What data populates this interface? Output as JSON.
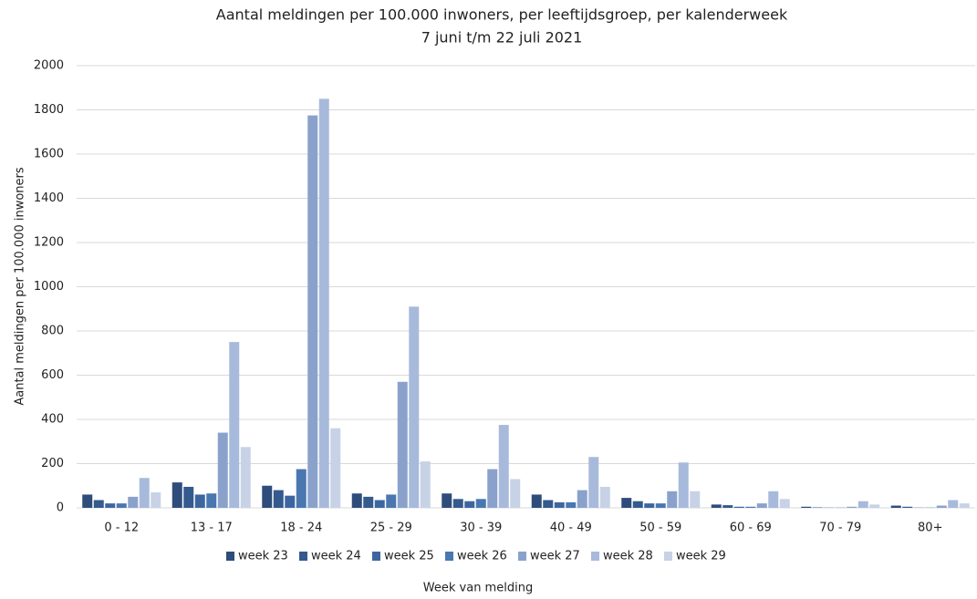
{
  "chart_data": {
    "type": "bar",
    "title": "Aantal meldingen per 100.000 inwoners, per leeftijdsgroep, per kalenderweek",
    "subtitle": "7 juni t/m 22 juli 2021",
    "y_label": "Aantal meldingen per 100.000 inwoners",
    "x_label": "Week van melding",
    "categories": [
      "0 - 12",
      "13 - 17",
      "18 - 24",
      "25 - 29",
      "30 - 39",
      "40 - 49",
      "50 - 59",
      "60 - 69",
      "70 - 79",
      "80+"
    ],
    "series": [
      {
        "name": "week 23",
        "color": "#2e4d7b",
        "values": [
          60,
          115,
          100,
          65,
          65,
          60,
          45,
          15,
          5,
          10
        ]
      },
      {
        "name": "week 24",
        "color": "#345a8e",
        "values": [
          35,
          95,
          80,
          50,
          40,
          35,
          30,
          12,
          2,
          5
        ]
      },
      {
        "name": "week 25",
        "color": "#3d66a0",
        "values": [
          20,
          60,
          55,
          35,
          30,
          25,
          20,
          5,
          1,
          1
        ]
      },
      {
        "name": "week 26",
        "color": "#4a77b0",
        "values": [
          20,
          65,
          175,
          60,
          40,
          25,
          20,
          5,
          1,
          1
        ]
      },
      {
        "name": "week 27",
        "color": "#8aa2cb",
        "values": [
          50,
          340,
          1775,
          570,
          175,
          80,
          75,
          20,
          5,
          10
        ]
      },
      {
        "name": "week 28",
        "color": "#a8badb",
        "values": [
          135,
          750,
          1850,
          910,
          375,
          230,
          205,
          75,
          30,
          35
        ]
      },
      {
        "name": "week 29",
        "color": "#c7d2e6",
        "values": [
          70,
          275,
          360,
          210,
          130,
          95,
          75,
          40,
          15,
          20
        ]
      }
    ],
    "ylim": [
      0,
      2000
    ],
    "yticks": [
      0,
      200,
      400,
      600,
      800,
      1000,
      1200,
      1400,
      1600,
      1800,
      2000
    ],
    "grid": true,
    "legend": "bottom"
  }
}
